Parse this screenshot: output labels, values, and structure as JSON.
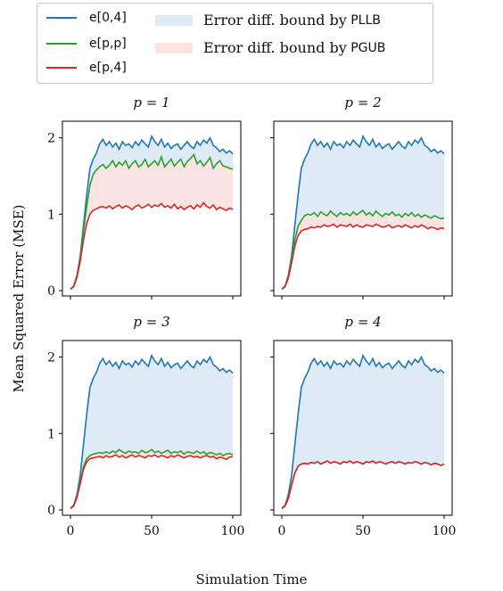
{
  "legend": {
    "items": [
      {
        "label": "e[0,4]",
        "color": "#1f77b4",
        "kind": "line"
      },
      {
        "label": "e[p,p]",
        "color": "#2ca02c",
        "kind": "line"
      },
      {
        "label": "e[p,4]",
        "color": "#d62728",
        "kind": "line"
      },
      {
        "label_prefix": "Error diff. bound by",
        "label_method": "PLLB",
        "color": "#deebf7",
        "kind": "patch"
      },
      {
        "label_prefix": "Error diff. bound by",
        "label_method": "PGUB",
        "color": "#fbe3e3",
        "kind": "patch"
      }
    ]
  },
  "chart_data": {
    "type": "line",
    "xlabel": "Simulation Time",
    "ylabel": "Mean Squared Error (MSE)",
    "xlim": [
      0,
      100
    ],
    "ylim": [
      0,
      2.1
    ],
    "x_ticks": [
      0,
      50,
      100
    ],
    "y_ticks": [
      0,
      1,
      2
    ],
    "grid": false,
    "legend_position": "top",
    "colors": {
      "blue": "#1f77b4",
      "green": "#2ca02c",
      "red": "#d62728",
      "pllb_fill": "#deebf7",
      "pgub_fill": "#fbe3e3"
    },
    "x": [
      0,
      2,
      4,
      6,
      8,
      10,
      12,
      14,
      16,
      18,
      20,
      22,
      24,
      26,
      28,
      30,
      32,
      34,
      36,
      38,
      40,
      42,
      44,
      46,
      48,
      50,
      52,
      54,
      56,
      58,
      60,
      62,
      64,
      66,
      68,
      70,
      72,
      74,
      76,
      78,
      80,
      82,
      84,
      86,
      88,
      90,
      92,
      94,
      96,
      98,
      100
    ],
    "e04": [
      0.02,
      0.06,
      0.2,
      0.45,
      0.85,
      1.25,
      1.6,
      1.72,
      1.8,
      1.92,
      1.98,
      1.9,
      1.95,
      1.88,
      1.93,
      1.85,
      1.95,
      1.9,
      1.92,
      1.87,
      1.95,
      1.9,
      1.97,
      1.92,
      1.88,
      2.02,
      1.95,
      1.9,
      1.98,
      1.88,
      1.93,
      1.86,
      1.9,
      1.92,
      1.85,
      1.9,
      1.95,
      1.89,
      1.86,
      1.95,
      1.9,
      1.97,
      1.93,
      2.0,
      1.9,
      1.87,
      1.82,
      1.85,
      1.8,
      1.83,
      1.79
    ],
    "panels": [
      {
        "title": "p = 1",
        "epp": [
          0.02,
          0.06,
          0.19,
          0.42,
          0.78,
          1.1,
          1.38,
          1.52,
          1.58,
          1.62,
          1.65,
          1.6,
          1.64,
          1.7,
          1.62,
          1.68,
          1.64,
          1.7,
          1.6,
          1.66,
          1.7,
          1.62,
          1.65,
          1.72,
          1.62,
          1.66,
          1.7,
          1.64,
          1.75,
          1.62,
          1.67,
          1.72,
          1.63,
          1.68,
          1.72,
          1.62,
          1.69,
          1.73,
          1.78,
          1.66,
          1.7,
          1.63,
          1.68,
          1.74,
          1.6,
          1.66,
          1.7,
          1.63,
          1.62,
          1.6,
          1.59
        ],
        "ep4": [
          0.02,
          0.05,
          0.17,
          0.38,
          0.66,
          0.88,
          1.0,
          1.05,
          1.07,
          1.09,
          1.1,
          1.08,
          1.11,
          1.07,
          1.1,
          1.12,
          1.08,
          1.11,
          1.09,
          1.06,
          1.1,
          1.12,
          1.08,
          1.1,
          1.13,
          1.09,
          1.12,
          1.1,
          1.14,
          1.09,
          1.11,
          1.08,
          1.13,
          1.07,
          1.1,
          1.06,
          1.09,
          1.11,
          1.07,
          1.12,
          1.09,
          1.15,
          1.1,
          1.08,
          1.12,
          1.06,
          1.09,
          1.07,
          1.05,
          1.08,
          1.06
        ]
      },
      {
        "title": "p = 2",
        "epp": [
          0.02,
          0.06,
          0.18,
          0.4,
          0.66,
          0.84,
          0.92,
          0.98,
          1.0,
          0.99,
          1.02,
          0.97,
          1.03,
          1.0,
          0.98,
          1.04,
          1.0,
          0.97,
          1.02,
          0.99,
          1.01,
          0.98,
          1.03,
          0.99,
          1.02,
          1.05,
          0.99,
          1.02,
          0.98,
          1.04,
          1.0,
          0.97,
          1.01,
          0.99,
          1.03,
          0.98,
          1.0,
          0.96,
          1.01,
          0.98,
          1.02,
          0.97,
          1.0,
          0.96,
          0.99,
          0.97,
          0.95,
          0.98,
          0.96,
          0.94,
          0.95
        ],
        "ep4": [
          0.02,
          0.05,
          0.16,
          0.36,
          0.58,
          0.72,
          0.78,
          0.8,
          0.81,
          0.83,
          0.82,
          0.84,
          0.83,
          0.86,
          0.84,
          0.85,
          0.87,
          0.83,
          0.86,
          0.85,
          0.84,
          0.87,
          0.83,
          0.86,
          0.84,
          0.83,
          0.86,
          0.85,
          0.84,
          0.87,
          0.85,
          0.83,
          0.84,
          0.86,
          0.82,
          0.84,
          0.85,
          0.83,
          0.86,
          0.84,
          0.82,
          0.85,
          0.83,
          0.86,
          0.84,
          0.81,
          0.83,
          0.82,
          0.8,
          0.82,
          0.81
        ]
      },
      {
        "title": "p = 3",
        "epp": [
          0.02,
          0.06,
          0.17,
          0.36,
          0.56,
          0.67,
          0.71,
          0.73,
          0.74,
          0.75,
          0.74,
          0.76,
          0.74,
          0.77,
          0.75,
          0.79,
          0.76,
          0.74,
          0.77,
          0.75,
          0.76,
          0.74,
          0.78,
          0.75,
          0.76,
          0.79,
          0.75,
          0.77,
          0.74,
          0.76,
          0.78,
          0.74,
          0.76,
          0.75,
          0.77,
          0.73,
          0.76,
          0.75,
          0.74,
          0.77,
          0.74,
          0.76,
          0.73,
          0.75,
          0.74,
          0.72,
          0.74,
          0.71,
          0.73,
          0.74,
          0.72
        ],
        "ep4": [
          0.02,
          0.05,
          0.16,
          0.34,
          0.53,
          0.63,
          0.67,
          0.68,
          0.69,
          0.7,
          0.68,
          0.71,
          0.69,
          0.7,
          0.72,
          0.69,
          0.71,
          0.68,
          0.7,
          0.72,
          0.69,
          0.71,
          0.7,
          0.68,
          0.71,
          0.7,
          0.72,
          0.69,
          0.71,
          0.7,
          0.68,
          0.71,
          0.69,
          0.72,
          0.7,
          0.68,
          0.7,
          0.71,
          0.69,
          0.7,
          0.68,
          0.7,
          0.71,
          0.69,
          0.7,
          0.67,
          0.69,
          0.68,
          0.66,
          0.69,
          0.7
        ]
      },
      {
        "title": "p = 4",
        "epp": [
          0.02,
          0.05,
          0.15,
          0.32,
          0.48,
          0.57,
          0.6,
          0.61,
          0.6,
          0.62,
          0.61,
          0.63,
          0.6,
          0.62,
          0.64,
          0.61,
          0.63,
          0.62,
          0.6,
          0.63,
          0.62,
          0.64,
          0.61,
          0.63,
          0.62,
          0.6,
          0.63,
          0.62,
          0.64,
          0.61,
          0.63,
          0.62,
          0.6,
          0.62,
          0.63,
          0.61,
          0.63,
          0.62,
          0.6,
          0.62,
          0.61,
          0.63,
          0.62,
          0.6,
          0.62,
          0.61,
          0.59,
          0.61,
          0.6,
          0.58,
          0.6
        ],
        "ep4": [
          0.02,
          0.05,
          0.15,
          0.32,
          0.48,
          0.57,
          0.6,
          0.61,
          0.6,
          0.62,
          0.61,
          0.63,
          0.6,
          0.62,
          0.64,
          0.61,
          0.63,
          0.62,
          0.6,
          0.63,
          0.62,
          0.64,
          0.61,
          0.63,
          0.62,
          0.6,
          0.63,
          0.62,
          0.64,
          0.61,
          0.63,
          0.62,
          0.6,
          0.62,
          0.63,
          0.61,
          0.63,
          0.62,
          0.6,
          0.62,
          0.61,
          0.63,
          0.62,
          0.6,
          0.62,
          0.61,
          0.59,
          0.61,
          0.6,
          0.58,
          0.6
        ]
      }
    ]
  }
}
